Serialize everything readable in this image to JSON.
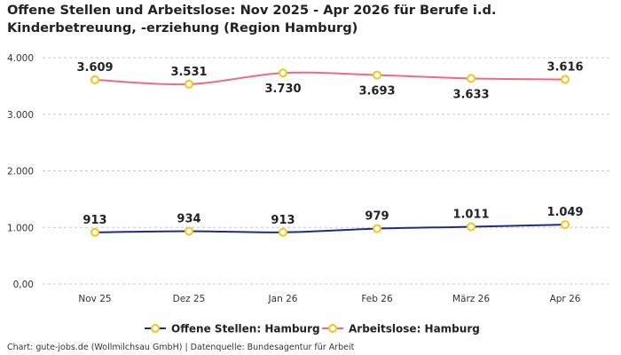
{
  "title": "Offene Stellen und Arbeitslose: Nov 2025 - Apr 2026 für Berufe i.d. Kinderbetreuung, -erziehung (Region Hamburg)",
  "footer": "Chart: gute-jobs.de (Wollmilchsau GmbH) | Datenquelle: Bundesagentur für Arbeit",
  "chart_data": {
    "type": "line",
    "title": "Offene Stellen und Arbeitslose: Nov 2025 - Apr 2026 für Berufe i.d. Kinderbetreuung, -erziehung (Region Hamburg)",
    "categories": [
      "Nov 25",
      "Dez 25",
      "Jan 26",
      "Feb 26",
      "März 26",
      "Apr 26"
    ],
    "yticks": [
      "0,00",
      "1.000",
      "2.000",
      "3.000",
      "4.000"
    ],
    "ylim": [
      0,
      4000
    ],
    "grid": true,
    "legend_position": "bottom",
    "series": [
      {
        "name": "Offene Stellen: Hamburg",
        "color": "#1f2d86",
        "values": [
          913,
          934,
          913,
          979,
          1011,
          1049
        ],
        "labels": [
          "913",
          "934",
          "913",
          "979",
          "1.011",
          "1.049"
        ]
      },
      {
        "name": "Arbeitslose: Hamburg",
        "color": "#f06b80",
        "values": [
          3609,
          3531,
          3730,
          3693,
          3633,
          3616
        ],
        "labels": [
          "3.609",
          "3.531",
          "3.730",
          "3.693",
          "3.633",
          "3.616"
        ]
      }
    ],
    "marker_color": "#f5c518"
  }
}
